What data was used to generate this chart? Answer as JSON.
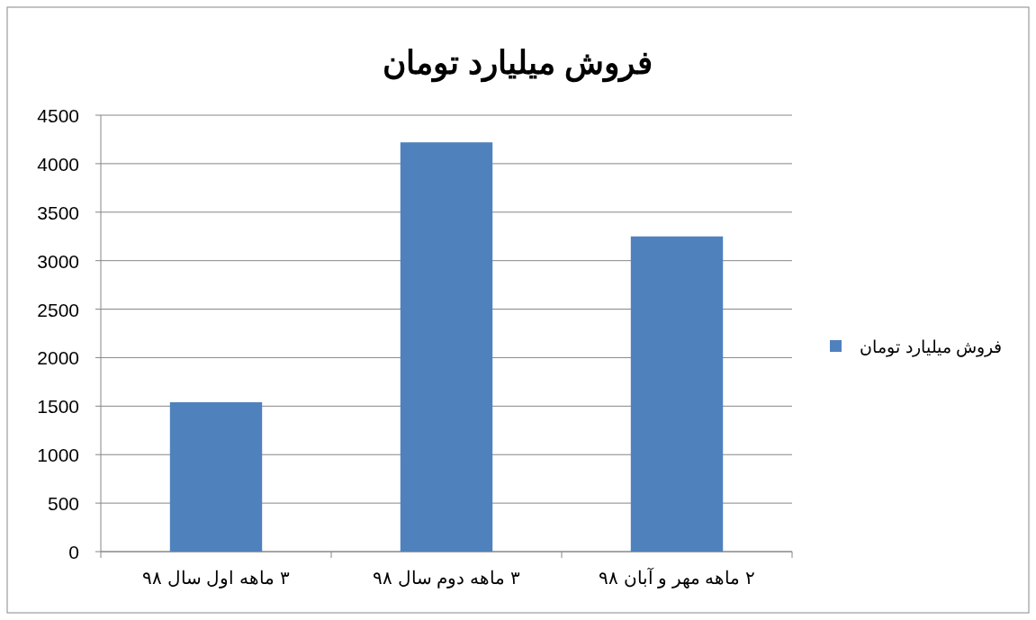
{
  "chart_data": {
    "type": "bar",
    "title": "فروش میلیارد تومان",
    "categories": [
      "۳ ماهه اول سال ۹۸",
      "۳ ماهه دوم سال ۹۸",
      "۲ ماهه مهر و آبان ۹۸"
    ],
    "series": [
      {
        "name": "فروش میلیارد تومان",
        "color": "#4f81bd",
        "values": [
          1540,
          4220,
          3250
        ]
      }
    ],
    "ylim": [
      0,
      4500
    ],
    "yticks": [
      0,
      500,
      1000,
      1500,
      2000,
      2500,
      3000,
      3500,
      4000,
      4500
    ],
    "grid": "y",
    "legend": "right"
  }
}
